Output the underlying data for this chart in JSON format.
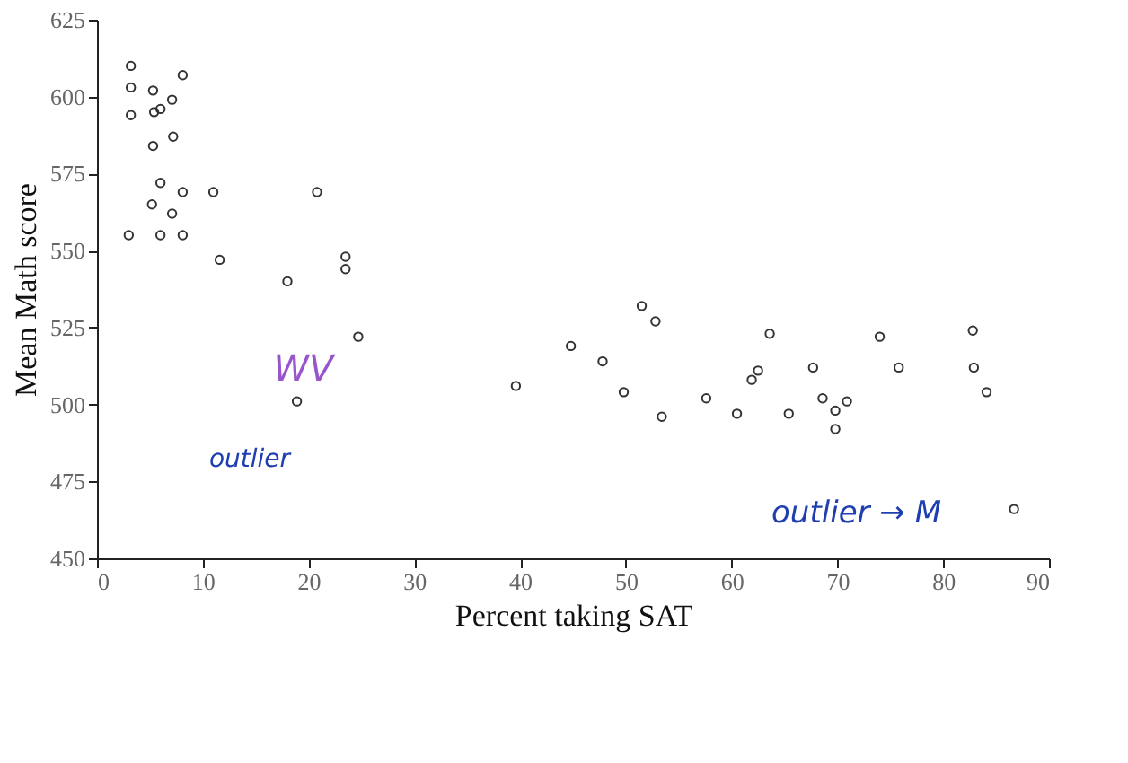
{
  "chart_data": {
    "type": "scatter",
    "xlabel": "Percent taking SAT",
    "ylabel": "Mean Math score",
    "xlim": [
      0,
      90
    ],
    "xticks": [
      0,
      10,
      20,
      30,
      40,
      50,
      60,
      70,
      80,
      90
    ],
    "ylim": [
      450,
      625
    ],
    "yticks": [
      450,
      475,
      500,
      525,
      550,
      575,
      600,
      625
    ],
    "marker": "circle",
    "grid": false,
    "series": [
      {
        "color": "#333333",
        "x": [
          3.2,
          8.1,
          3.2,
          5.3,
          7.1,
          6.0,
          3.2,
          5.4,
          7.2,
          5.3,
          6.0,
          8.1,
          11.0,
          20.8,
          5.2,
          7.1,
          3.0,
          6.0,
          8.1,
          11.6,
          23.5,
          23.5,
          18.0,
          24.7,
          18.9,
          39.6,
          51.5,
          52.8,
          44.8,
          47.8,
          49.8,
          53.4,
          57.6,
          60.5,
          63.6,
          61.9,
          62.5,
          65.4,
          67.7,
          68.6,
          70.9,
          69.8,
          69.8,
          74.0,
          75.8,
          82.8,
          82.9,
          84.1,
          86.7
        ],
        "values": [
          610,
          607,
          603,
          602,
          599,
          596,
          594,
          595,
          587,
          584,
          572,
          569,
          569,
          569,
          565,
          562,
          555,
          555,
          555,
          547,
          548,
          544,
          540,
          522,
          501,
          506,
          532,
          527,
          519,
          514,
          504,
          496,
          502,
          497,
          523,
          508,
          511,
          497,
          512,
          502,
          501,
          498,
          492,
          522,
          512,
          524,
          512,
          504,
          466
        ]
      }
    ],
    "annotations": [
      "WV",
      "outlier",
      "outlier → M"
    ]
  }
}
